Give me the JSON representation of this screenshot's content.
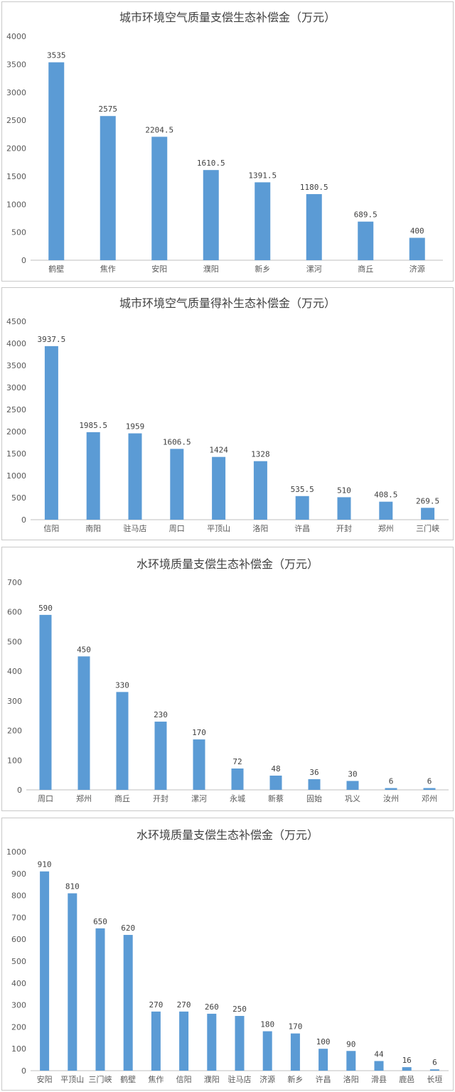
{
  "colors": {
    "bar": "#5b9bd5",
    "axis": "#bfbfbf",
    "text": "#595959"
  },
  "chart_data": [
    {
      "type": "bar",
      "title": "城市环境空气质量支偿生态补偿金（万元）",
      "categories": [
        "鹤壁",
        "焦作",
        "安阳",
        "濮阳",
        "新乡",
        "漯河",
        "商丘",
        "济源"
      ],
      "values": [
        3535,
        2575,
        2204.5,
        1610.5,
        1391.5,
        1180.5,
        689.5,
        400
      ],
      "value_labels": [
        "3535",
        "2575",
        "2204.5",
        "1610.5",
        "1391.5",
        "1180.5",
        "689.5",
        "400"
      ],
      "ylim": [
        0,
        4000
      ],
      "yticks": [
        0,
        500,
        1000,
        1500,
        2000,
        2500,
        3000,
        3500,
        4000
      ],
      "grid": false,
      "legend": false
    },
    {
      "type": "bar",
      "title": "城市环境空气质量得补生态补偿金（万元）",
      "categories": [
        "信阳",
        "南阳",
        "驻马店",
        "周口",
        "平顶山",
        "洛阳",
        "许昌",
        "开封",
        "郑州",
        "三门峡"
      ],
      "values": [
        3937.5,
        1985.5,
        1959,
        1606.5,
        1424,
        1328,
        535.5,
        510,
        408.5,
        269.5
      ],
      "value_labels": [
        "3937.5",
        "1985.5",
        "1959",
        "1606.5",
        "1424",
        "1328",
        "535.5",
        "510",
        "408.5",
        "269.5"
      ],
      "ylim": [
        0,
        4500
      ],
      "yticks": [
        0,
        500,
        1000,
        1500,
        2000,
        2500,
        3000,
        3500,
        4000,
        4500
      ],
      "grid": false,
      "legend": false
    },
    {
      "type": "bar",
      "title": "水环境质量支偿生态补偿金（万元）",
      "categories": [
        "周口",
        "郑州",
        "商丘",
        "开封",
        "漯河",
        "永城",
        "新蔡",
        "固始",
        "巩义",
        "汝州",
        "邓州"
      ],
      "values": [
        590,
        450,
        330,
        230,
        170,
        72,
        48,
        36,
        30,
        6,
        6
      ],
      "value_labels": [
        "590",
        "450",
        "330",
        "230",
        "170",
        "72",
        "48",
        "36",
        "30",
        "6",
        "6"
      ],
      "ylim": [
        0,
        700
      ],
      "yticks": [
        0,
        100,
        200,
        300,
        400,
        500,
        600,
        700
      ],
      "grid": false,
      "legend": false
    },
    {
      "type": "bar",
      "title": "水环境质量支偿生态补偿金（万元）",
      "categories": [
        "安阳",
        "平顶山",
        "三门峡",
        "鹤壁",
        "焦作",
        "信阳",
        "濮阳",
        "驻马店",
        "济源",
        "新乡",
        "许昌",
        "洛阳",
        "滑县",
        "鹿邑",
        "长垣"
      ],
      "values": [
        910,
        810,
        650,
        620,
        270,
        270,
        260,
        250,
        180,
        170,
        100,
        90,
        44,
        16,
        6
      ],
      "value_labels": [
        "910",
        "810",
        "650",
        "620",
        "270",
        "270",
        "260",
        "250",
        "180",
        "170",
        "100",
        "90",
        "44",
        "16",
        "6"
      ],
      "ylim": [
        0,
        1000
      ],
      "yticks": [
        0,
        100,
        200,
        300,
        400,
        500,
        600,
        700,
        800,
        900,
        1000
      ],
      "grid": false,
      "legend": false
    }
  ]
}
